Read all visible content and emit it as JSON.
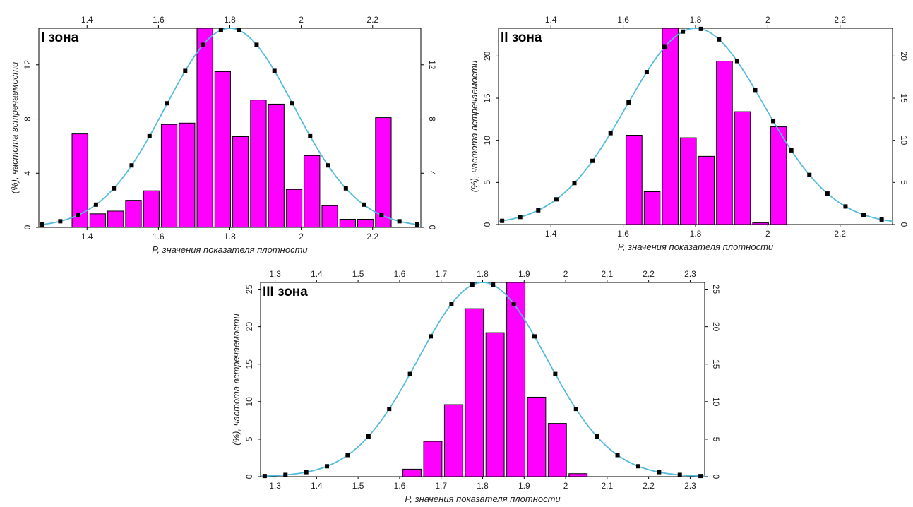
{
  "chart_data": [
    {
      "type": "bar",
      "title": "I зона",
      "xlabel": "P, значения показателя плотности",
      "ylabel": "(%), частота встречаемости",
      "xlim": [
        1.265,
        2.335
      ],
      "ylim": [
        0,
        14.7
      ],
      "xticks": [
        "1.4",
        "1.6",
        "1.8",
        "2",
        "2.2"
      ],
      "yticks": [
        "0",
        "4",
        "8",
        "12"
      ],
      "bar_width": 0.044,
      "bars": [
        {
          "x": 1.38,
          "value": 6.9
        },
        {
          "x": 1.43,
          "value": 1.0
        },
        {
          "x": 1.48,
          "value": 1.2
        },
        {
          "x": 1.53,
          "value": 2.0
        },
        {
          "x": 1.58,
          "value": 2.7
        },
        {
          "x": 1.63,
          "value": 7.6
        },
        {
          "x": 1.68,
          "value": 7.7
        },
        {
          "x": 1.73,
          "value": 14.7
        },
        {
          "x": 1.78,
          "value": 11.5
        },
        {
          "x": 1.83,
          "value": 6.7
        },
        {
          "x": 1.88,
          "value": 9.4
        },
        {
          "x": 1.93,
          "value": 9.1
        },
        {
          "x": 1.98,
          "value": 2.8
        },
        {
          "x": 2.03,
          "value": 5.3
        },
        {
          "x": 2.08,
          "value": 1.6
        },
        {
          "x": 2.13,
          "value": 0.6
        },
        {
          "x": 2.18,
          "value": 0.6
        },
        {
          "x": 2.23,
          "value": 8.1
        }
      ],
      "fit_curve": {
        "mean": 1.8,
        "sd": 0.18,
        "peak": 14.7
      },
      "fit_points_x": [
        1.275,
        1.325,
        1.375,
        1.425,
        1.475,
        1.525,
        1.575,
        1.625,
        1.675,
        1.725,
        1.775,
        1.825,
        1.875,
        1.925,
        1.975,
        2.025,
        2.075,
        2.125,
        2.175,
        2.225,
        2.275,
        2.325
      ]
    },
    {
      "type": "bar",
      "title": "II зона",
      "xlabel": "P, значения показателя плотности",
      "ylabel": "(%), частота встречаемости",
      "xlim": [
        1.255,
        2.345
      ],
      "ylim": [
        0,
        23.3
      ],
      "xticks": [
        "1.4",
        "1.6",
        "1.8",
        "2",
        "2.2"
      ],
      "yticks": [
        "0",
        "5",
        "10",
        "15",
        "20"
      ],
      "bar_width": 0.044,
      "bars": [
        {
          "x": 1.63,
          "value": 10.6
        },
        {
          "x": 1.68,
          "value": 3.9
        },
        {
          "x": 1.73,
          "value": 23.3
        },
        {
          "x": 1.78,
          "value": 10.3
        },
        {
          "x": 1.83,
          "value": 8.1
        },
        {
          "x": 1.88,
          "value": 19.4
        },
        {
          "x": 1.93,
          "value": 13.4
        },
        {
          "x": 1.98,
          "value": 0.2
        },
        {
          "x": 2.03,
          "value": 11.6
        }
      ],
      "fit_curve": {
        "mean": 1.8,
        "sd": 0.19,
        "peak": 23.3
      },
      "fit_points_x": [
        1.265,
        1.315,
        1.365,
        1.415,
        1.465,
        1.515,
        1.565,
        1.615,
        1.665,
        1.715,
        1.765,
        1.815,
        1.865,
        1.915,
        1.965,
        2.015,
        2.065,
        2.115,
        2.165,
        2.215,
        2.265,
        2.315
      ]
    },
    {
      "type": "bar",
      "title": "III зона",
      "xlabel": "P, значения показателя плотности",
      "ylabel": "(%), частота встречаемости",
      "xlim": [
        1.265,
        2.335
      ],
      "ylim": [
        0,
        25.9
      ],
      "xticks": [
        "1.3",
        "1.4",
        "1.5",
        "1.6",
        "1.7",
        "1.8",
        "1.9",
        "2",
        "2.1",
        "2.2",
        "2.3"
      ],
      "yticks": [
        "0",
        "5",
        "10",
        "15",
        "20",
        "25"
      ],
      "bar_width": 0.044,
      "bars": [
        {
          "x": 1.63,
          "value": 1.0
        },
        {
          "x": 1.68,
          "value": 4.7
        },
        {
          "x": 1.73,
          "value": 9.6
        },
        {
          "x": 1.78,
          "value": 22.4
        },
        {
          "x": 1.83,
          "value": 19.2
        },
        {
          "x": 1.88,
          "value": 25.9
        },
        {
          "x": 1.93,
          "value": 10.6
        },
        {
          "x": 1.98,
          "value": 7.1
        },
        {
          "x": 2.03,
          "value": 0.4
        }
      ],
      "fit_curve": {
        "mean": 1.8,
        "sd": 0.155,
        "peak": 25.9
      },
      "fit_points_x": [
        1.275,
        1.325,
        1.375,
        1.425,
        1.475,
        1.525,
        1.575,
        1.625,
        1.675,
        1.725,
        1.775,
        1.825,
        1.875,
        1.925,
        1.975,
        2.025,
        2.075,
        2.125,
        2.175,
        2.225,
        2.275,
        2.325
      ]
    }
  ],
  "colors": {
    "bar_fill": "#ff00ff",
    "bar_stroke": "#000000",
    "curve": "#55bbdd",
    "marker": "#000000",
    "axis": "#000000"
  }
}
